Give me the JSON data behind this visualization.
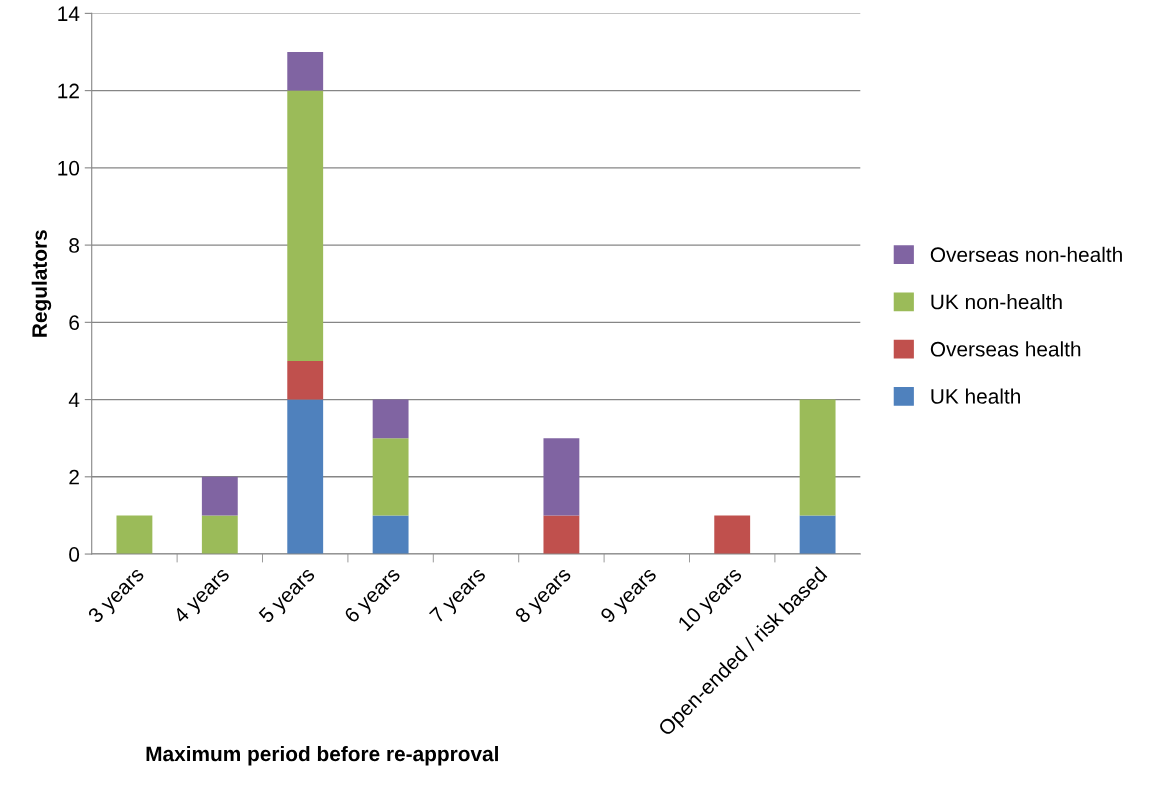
{
  "chart_data": {
    "type": "bar",
    "stacked": true,
    "xlabel": "Maximum period before re-approval",
    "ylabel": "Regulators",
    "categories": [
      "3 years",
      "4 years",
      "5 years",
      "6 years",
      "7 years",
      "8 years",
      "9 years",
      "10 years",
      "Open-ended / risk based"
    ],
    "series": [
      {
        "name": "UK health",
        "color": "#4f81bd",
        "values": [
          null,
          null,
          4,
          1,
          null,
          null,
          null,
          null,
          1
        ]
      },
      {
        "name": "Overseas health",
        "color": "#c0504d",
        "values": [
          null,
          null,
          1,
          null,
          null,
          1,
          null,
          1,
          null
        ]
      },
      {
        "name": "UK non-health",
        "color": "#9bbb59",
        "values": [
          1,
          1,
          7,
          2,
          null,
          null,
          null,
          null,
          3
        ]
      },
      {
        "name": "Overseas non-health",
        "color": "#8064a2",
        "values": [
          null,
          1,
          1,
          1,
          null,
          2,
          null,
          null,
          null
        ]
      }
    ],
    "ylim": [
      0,
      14
    ],
    "yticks": [
      0,
      2,
      4,
      6,
      8,
      10,
      12,
      14
    ],
    "grid": "y",
    "legend": "right"
  }
}
